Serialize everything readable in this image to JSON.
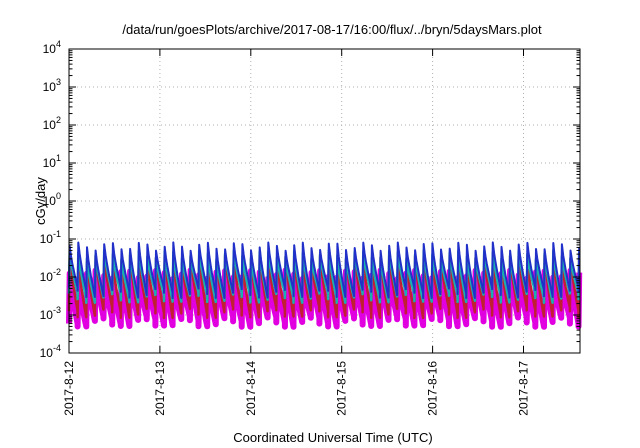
{
  "chart_data": {
    "type": "line",
    "title": "/data/run/goesPlots/archive/2017-08-17/16:00/flux/../bryn/5daysMars.plot",
    "xlabel": "Coordinated Universal Time (UTC)",
    "ylabel": "cGy/day",
    "yscale": "log",
    "ylim": [
      0.0001,
      10000
    ],
    "y_ticks": [
      {
        "base": "10",
        "exp": "-4"
      },
      {
        "base": "10",
        "exp": "-3"
      },
      {
        "base": "10",
        "exp": "-2"
      },
      {
        "base": "10",
        "exp": "-1"
      },
      {
        "base": "10",
        "exp": "0"
      },
      {
        "base": "10",
        "exp": "1"
      },
      {
        "base": "10",
        "exp": "2"
      },
      {
        "base": "10",
        "exp": "3"
      },
      {
        "base": "10",
        "exp": "4"
      }
    ],
    "x_range_days": [
      "2017-08-12",
      "2017-08-17 ~17:00"
    ],
    "x_ticks": [
      "2017-8-12",
      "2017-8-13",
      "2017-8-14",
      "2017-8-15",
      "2017-8-16",
      "2017-8-17"
    ],
    "grid": true,
    "series": [
      {
        "color": "#2030c8",
        "cycle_hours": 2.28,
        "peak": 0.065,
        "trough": 0.004,
        "role": "upper"
      },
      {
        "color": "#1ab0b0",
        "cycle_hours": 2.28,
        "peak": 0.04,
        "trough": 0.003,
        "role": "upper"
      },
      {
        "color": "#c02030",
        "cycle_hours": 2.28,
        "peak": 0.03,
        "trough": 0.0012,
        "role": "middle"
      },
      {
        "color": "#e000e0",
        "cycle_hours": 2.28,
        "peak": 0.012,
        "trough": 0.0007,
        "role": "lower"
      }
    ]
  }
}
